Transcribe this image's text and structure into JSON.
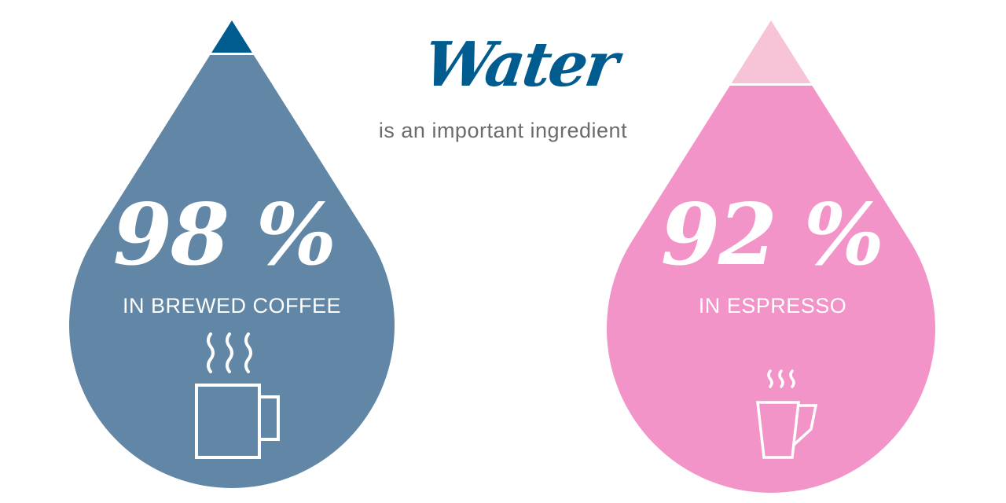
{
  "header": {
    "title": "Water",
    "subtitle": "is an important ingredient"
  },
  "drops": [
    {
      "value": "98 %",
      "fill_percent": 98,
      "label": "IN BREWED COFFEE",
      "icon": "steaming-mug-icon",
      "color_body": "#6286a5",
      "color_tip": "#005b8f"
    },
    {
      "value": "92 %",
      "fill_percent": 92,
      "label": "IN ESPRESSO",
      "icon": "steaming-cup-icon",
      "color_body": "#f294c7",
      "color_tip": "#f6c3d7"
    }
  ]
}
